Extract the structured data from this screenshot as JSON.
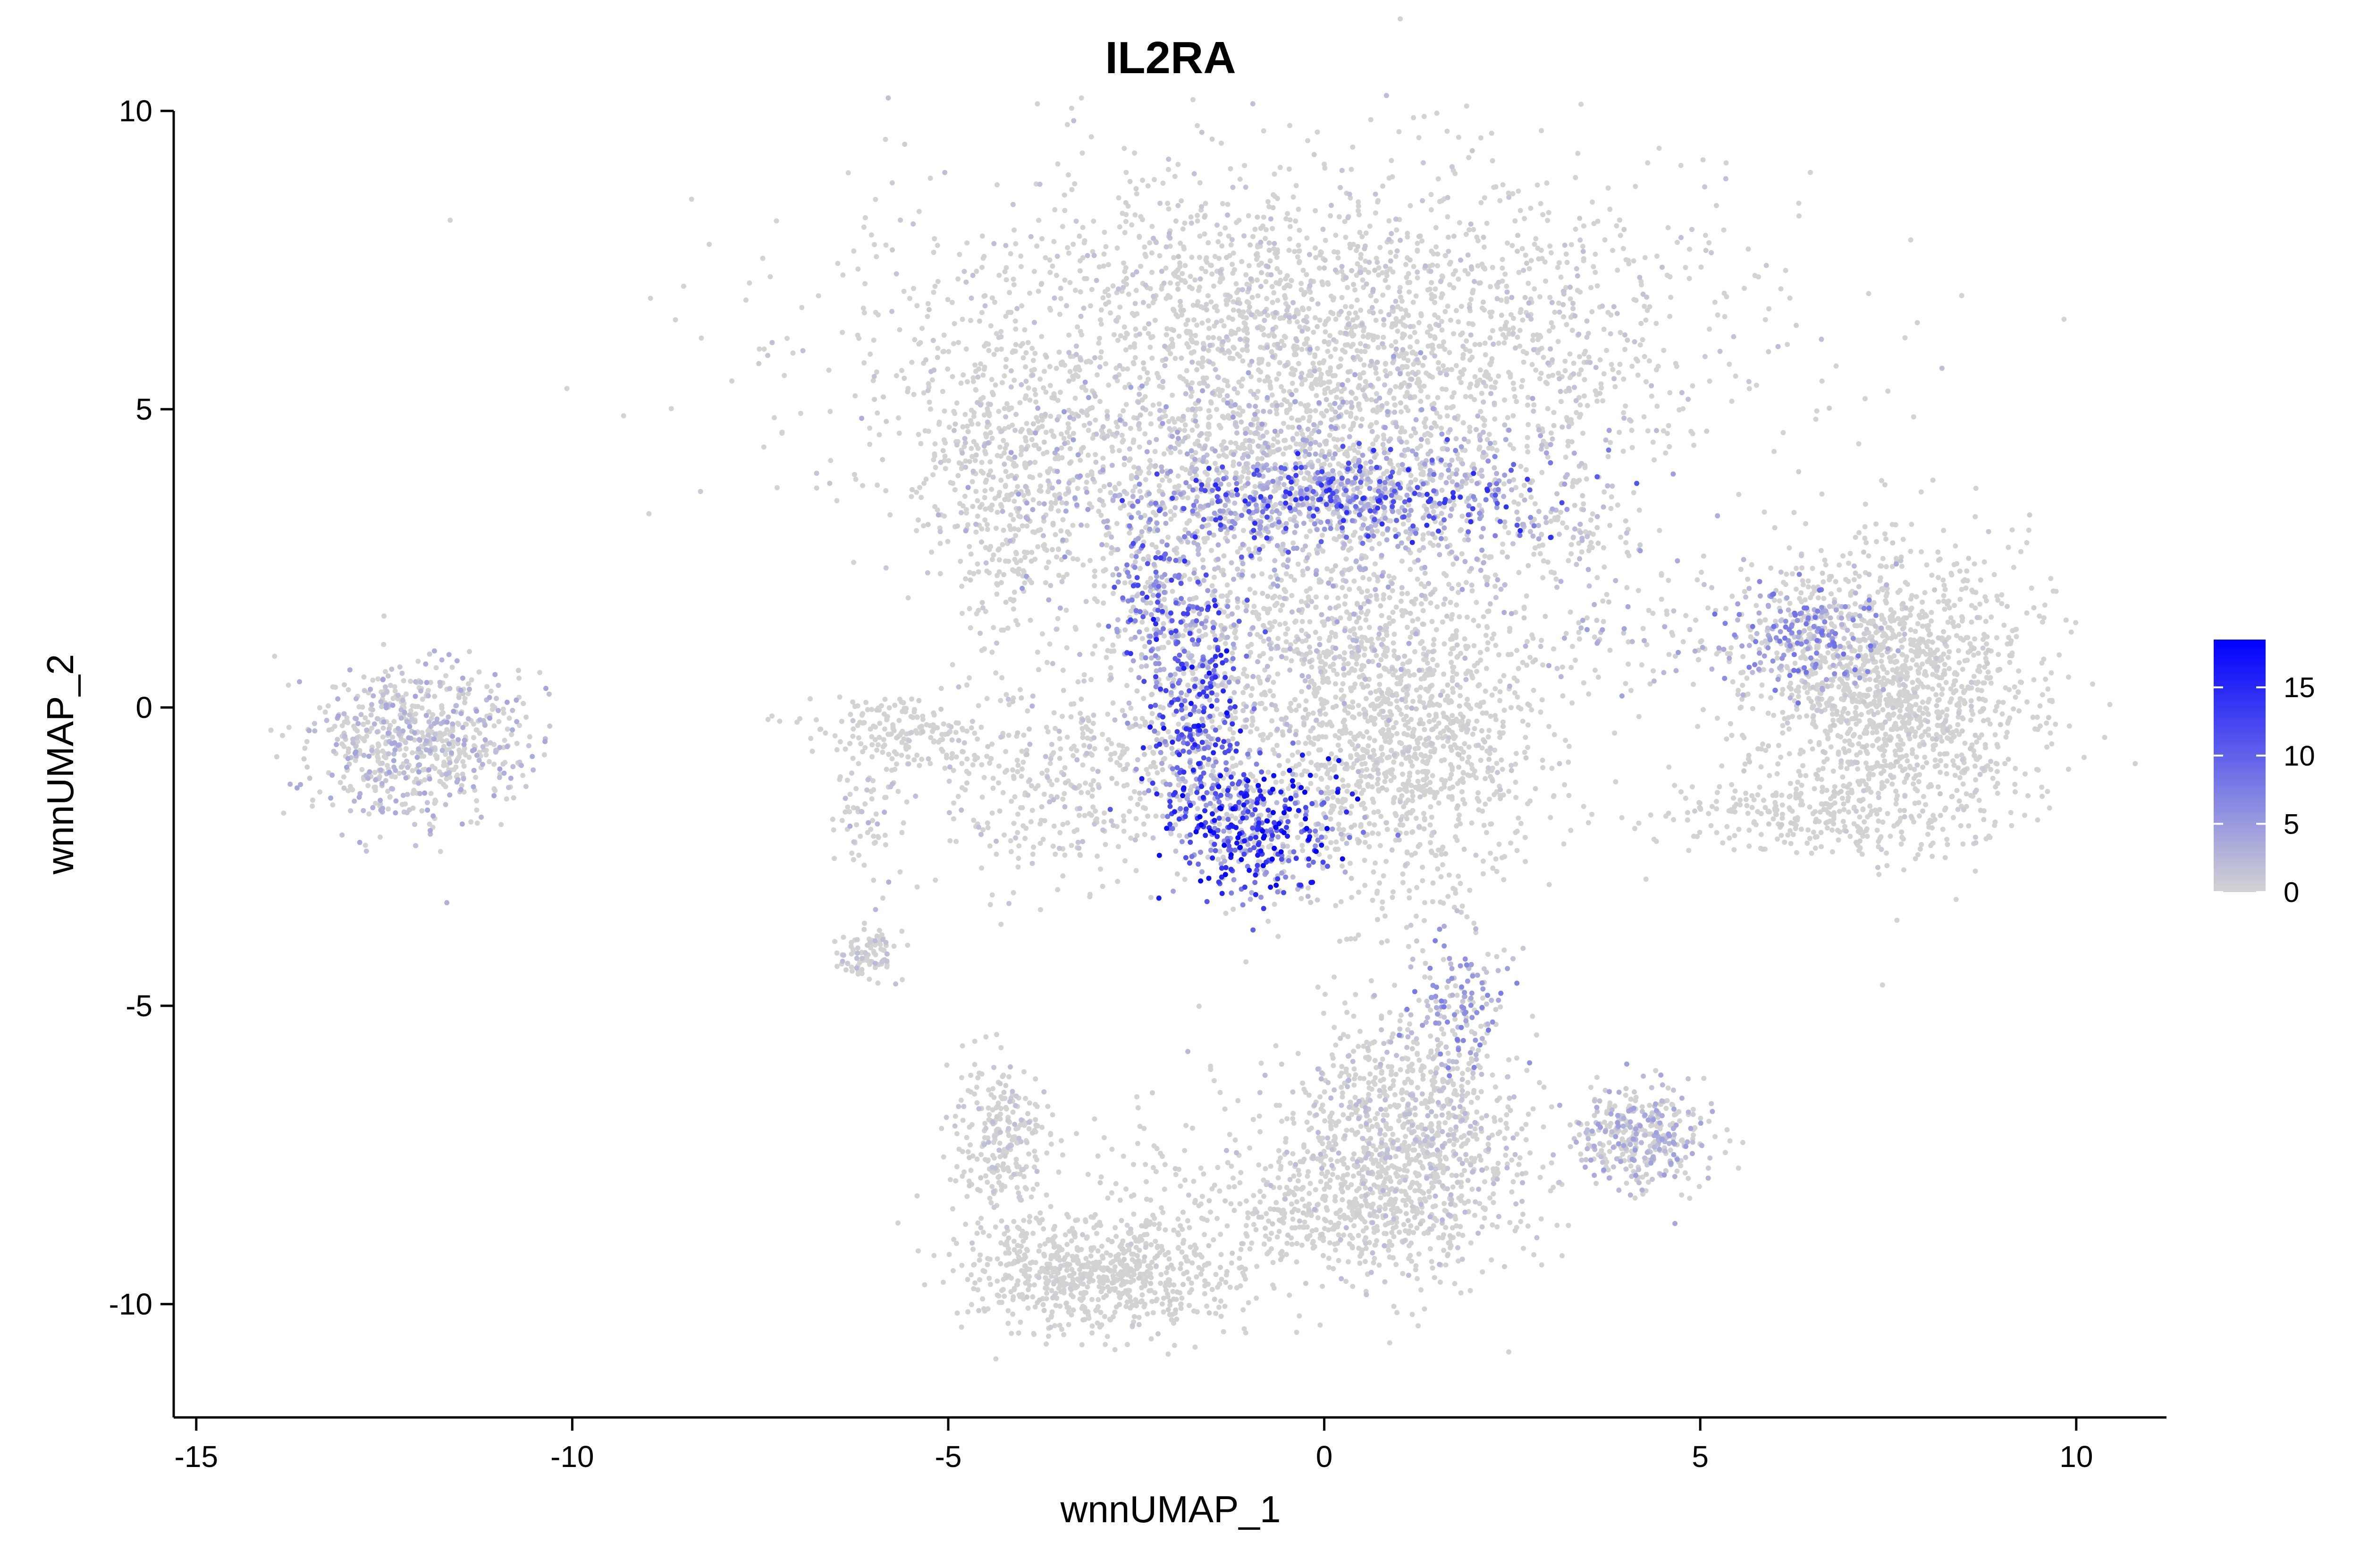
{
  "chart_data": {
    "type": "scatter",
    "title": "IL2RA",
    "xlabel": "wnnUMAP_1",
    "ylabel": "wnnUMAP_2",
    "xlim": [
      -15.3,
      11.2
    ],
    "ylim": [
      -11.9,
      10
    ],
    "x_ticks": [
      -15,
      -10,
      -5,
      0,
      5,
      10
    ],
    "y_ticks": [
      -10,
      -5,
      0,
      5,
      10
    ],
    "x_tick_labels": [
      "-15",
      "-10",
      "-5",
      "0",
      "5",
      "10"
    ],
    "y_tick_labels": [
      "-10",
      "-5",
      "0",
      "5",
      "10"
    ],
    "grid": false,
    "color_scale": {
      "low_color": "#d3d3d3",
      "high_color": "#0000ff",
      "min": 0,
      "max": 18.5,
      "ticks": [
        0,
        5,
        10,
        15
      ],
      "tick_labels": [
        "0",
        "5",
        "10",
        "15"
      ],
      "placement": "right"
    },
    "clusters": [
      {
        "center": [
          -0.3,
          6.2
        ],
        "spread": [
          2.7,
          1.4
        ],
        "count": 2600,
        "expr_mean": 1.2
      },
      {
        "center": [
          -0.6,
          3.7
        ],
        "spread": [
          2.0,
          0.9
        ],
        "count": 1200,
        "expr_mean": 3.0
      },
      {
        "center": [
          0.3,
          3.5
        ],
        "spread": [
          1.3,
          0.35
        ],
        "count": 450,
        "expr_mean": 9.5
      },
      {
        "center": [
          -4.2,
          3.6
        ],
        "spread": [
          0.6,
          1.3
        ],
        "count": 400,
        "expr_mean": 0.8
      },
      {
        "center": [
          -2.2,
          1.8
        ],
        "spread": [
          0.35,
          0.6
        ],
        "count": 180,
        "expr_mean": 9.0
      },
      {
        "center": [
          -1.7,
          -0.3
        ],
        "spread": [
          0.35,
          0.9
        ],
        "count": 340,
        "expr_mean": 11.0
      },
      {
        "center": [
          -0.9,
          -2.0
        ],
        "spread": [
          0.55,
          0.6
        ],
        "count": 420,
        "expr_mean": 13.0
      },
      {
        "center": [
          1.0,
          -0.7
        ],
        "spread": [
          1.0,
          1.3
        ],
        "count": 1200,
        "expr_mean": 0.6
      },
      {
        "center": [
          -0.4,
          1.2
        ],
        "spread": [
          1.4,
          0.9
        ],
        "count": 650,
        "expr_mean": 2.0
      },
      {
        "center": [
          -3.4,
          -1.2
        ],
        "spread": [
          1.0,
          0.9
        ],
        "count": 420,
        "expr_mean": 1.2
      },
      {
        "center": [
          -5.6,
          -0.4
        ],
        "spread": [
          0.6,
          0.35
        ],
        "count": 180,
        "expr_mean": 0.6
      },
      {
        "center": [
          -6.1,
          -1.8
        ],
        "spread": [
          0.25,
          0.5
        ],
        "count": 60,
        "expr_mean": 2.0
      },
      {
        "center": [
          -6.05,
          -4.15
        ],
        "spread": [
          0.2,
          0.2
        ],
        "count": 90,
        "expr_mean": 1.5
      },
      {
        "center": [
          1.8,
          -5.0
        ],
        "spread": [
          0.3,
          0.6
        ],
        "count": 130,
        "expr_mean": 5.0
      },
      {
        "center": [
          1.1,
          -7.3
        ],
        "spread": [
          0.8,
          1.1
        ],
        "count": 1100,
        "expr_mean": 1.5
      },
      {
        "center": [
          0.2,
          -8.4
        ],
        "spread": [
          0.8,
          0.55
        ],
        "count": 300,
        "expr_mean": 0.5
      },
      {
        "center": [
          -4.3,
          -7.2
        ],
        "spread": [
          0.35,
          0.7
        ],
        "count": 260,
        "expr_mean": 1.2
      },
      {
        "center": [
          -3.0,
          -9.5
        ],
        "spread": [
          0.9,
          0.5
        ],
        "count": 750,
        "expr_mean": 0.5
      },
      {
        "center": [
          -1.8,
          -8.0
        ],
        "spread": [
          1.0,
          0.9
        ],
        "count": 120,
        "expr_mean": 0.3
      },
      {
        "center": [
          4.2,
          -7.2
        ],
        "spread": [
          0.45,
          0.4
        ],
        "count": 380,
        "expr_mean": 3.0
      },
      {
        "center": [
          7.6,
          0.3
        ],
        "spread": [
          1.0,
          1.2
        ],
        "count": 1500,
        "expr_mean": 0.6
      },
      {
        "center": [
          6.4,
          1.2
        ],
        "spread": [
          0.5,
          0.45
        ],
        "count": 220,
        "expr_mean": 5.5
      },
      {
        "center": [
          6.5,
          -1.8
        ],
        "spread": [
          1.2,
          0.3
        ],
        "count": 250,
        "expr_mean": 0.5
      },
      {
        "center": [
          4.5,
          1.4
        ],
        "spread": [
          1.6,
          0.5
        ],
        "count": 150,
        "expr_mean": 3.0
      },
      {
        "center": [
          3.3,
          3.0
        ],
        "spread": [
          0.4,
          0.35
        ],
        "count": 70,
        "expr_mean": 1.8
      },
      {
        "center": [
          -12.1,
          -0.6
        ],
        "spread": [
          0.7,
          0.65
        ],
        "count": 700,
        "expr_mean": 2.6
      }
    ]
  }
}
